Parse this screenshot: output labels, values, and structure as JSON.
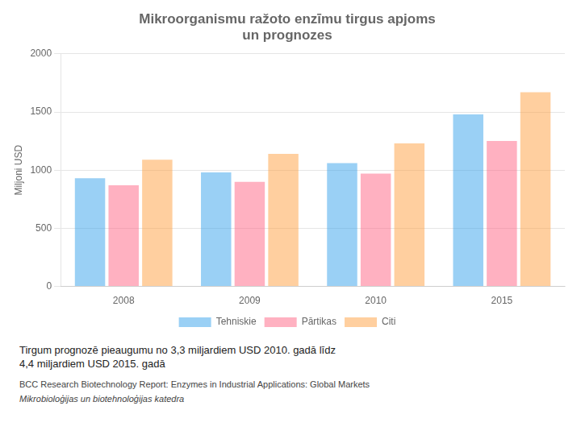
{
  "chart_data": {
    "type": "bar",
    "title": "Mikroorganismu ražoto enzīmu tirgus apjoms\nun prognozes",
    "subtitle": "Tirgum prognozē pieaugumu no 3,3 miljardiem USD 2010. gadā līdz\n4,4 miljardiem USD 2015. gadā",
    "annotations": [
      "BCC Research Biotechnology Report: Enzymes in Industrial Applications: Global Markets",
      "Mikrobioloģijas un biotehnoloģijas katedra"
    ],
    "y_label": "Miljoni USD",
    "categories": [
      "2008",
      "2009",
      "2010",
      "2015"
    ],
    "series": [
      {
        "name": "Tehniskie",
        "values": [
          930,
          980,
          1060,
          1480
        ]
      },
      {
        "name": "Pārtikas",
        "values": [
          870,
          900,
          970,
          1250
        ]
      },
      {
        "name": "Citi",
        "values": [
          1090,
          1140,
          1230,
          1670
        ]
      }
    ],
    "ylim": [
      0,
      2000
    ],
    "yticks": [
      0,
      500,
      1000,
      1500,
      2000
    ],
    "grid": true,
    "legend": "bottom"
  }
}
